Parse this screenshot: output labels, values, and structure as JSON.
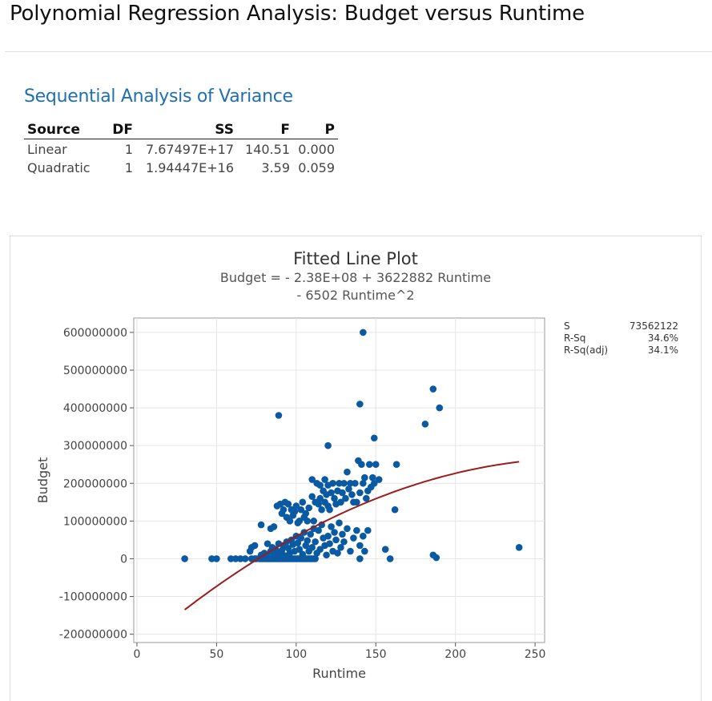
{
  "page": {
    "title": "Polynomial Regression Analysis: Budget versus Runtime"
  },
  "anova": {
    "title": "Sequential Analysis of Variance",
    "headers": [
      "Source",
      "DF",
      "SS",
      "F",
      "P"
    ],
    "rows": [
      [
        "Linear",
        "1",
        "7.67497E+17",
        "140.51",
        "0.000"
      ],
      [
        "Quadratic",
        "1",
        "1.94447E+16",
        "3.59",
        "0.059"
      ]
    ]
  },
  "plot": {
    "title": "Fitted Line Plot",
    "equation_line1": "Budget = - 2.38E+08 + 3622882 Runtime",
    "equation_line2": "- 6502 Runtime^2",
    "stats": [
      {
        "label": "S",
        "value": "73562122"
      },
      {
        "label": "R-Sq",
        "value": "34.6%"
      },
      {
        "label": "R-Sq(adj)",
        "value": "34.1%"
      }
    ]
  },
  "colors": {
    "accent": "#1f6fb2",
    "points": "#0a5aa3",
    "fit_line": "#9b1c1c"
  },
  "chart_data": {
    "type": "scatter",
    "title": "Fitted Line Plot",
    "xlabel": "Runtime",
    "ylabel": "Budget",
    "xlim": [
      -2,
      256
    ],
    "ylim": [
      -222000000,
      638000000
    ],
    "x_ticks": [
      0,
      50,
      100,
      150,
      200,
      250
    ],
    "x_tick_labels": [
      "0",
      "50",
      "100",
      "150",
      "200",
      "250"
    ],
    "y_ticks": [
      -200000000,
      -100000000,
      0,
      100000000,
      200000000,
      300000000,
      400000000,
      500000000,
      600000000
    ],
    "y_tick_labels": [
      "-200000000",
      "-100000000",
      "0",
      "100000000",
      "200000000",
      "300000000",
      "400000000",
      "500000000",
      "600000000"
    ],
    "grid": true,
    "fit": {
      "intercept": -238000000,
      "linear": 3622882,
      "quadratic": -6502,
      "x_range": [
        30,
        240
      ]
    },
    "points": [
      [
        30,
        0
      ],
      [
        47,
        0
      ],
      [
        50,
        0
      ],
      [
        59,
        0
      ],
      [
        62,
        0
      ],
      [
        65,
        0
      ],
      [
        68,
        0
      ],
      [
        72,
        0
      ],
      [
        74,
        0
      ],
      [
        71,
        20000000
      ],
      [
        72,
        30000000
      ],
      [
        74,
        35000000
      ],
      [
        75,
        0
      ],
      [
        77,
        0
      ],
      [
        78,
        0
      ],
      [
        79,
        0
      ],
      [
        80,
        0
      ],
      [
        81,
        0
      ],
      [
        82,
        0
      ],
      [
        83,
        0
      ],
      [
        84,
        0
      ],
      [
        85,
        0
      ],
      [
        86,
        0
      ],
      [
        87,
        0
      ],
      [
        88,
        0
      ],
      [
        89,
        0
      ],
      [
        90,
        0
      ],
      [
        91,
        0
      ],
      [
        92,
        0
      ],
      [
        93,
        0
      ],
      [
        94,
        0
      ],
      [
        95,
        0
      ],
      [
        96,
        0
      ],
      [
        97,
        0
      ],
      [
        98,
        0
      ],
      [
        99,
        0
      ],
      [
        100,
        0
      ],
      [
        101,
        0
      ],
      [
        102,
        0
      ],
      [
        103,
        0
      ],
      [
        104,
        0
      ],
      [
        105,
        0
      ],
      [
        106,
        0
      ],
      [
        107,
        0
      ],
      [
        108,
        0
      ],
      [
        109,
        0
      ],
      [
        110,
        0
      ],
      [
        111,
        0
      ],
      [
        112,
        0
      ],
      [
        78,
        10000000
      ],
      [
        80,
        15000000
      ],
      [
        82,
        5000000
      ],
      [
        84,
        20000000
      ],
      [
        85,
        30000000
      ],
      [
        86,
        10000000
      ],
      [
        87,
        25000000
      ],
      [
        88,
        18000000
      ],
      [
        89,
        40000000
      ],
      [
        90,
        12000000
      ],
      [
        91,
        22000000
      ],
      [
        92,
        35000000
      ],
      [
        93,
        8000000
      ],
      [
        94,
        45000000
      ],
      [
        95,
        28000000
      ],
      [
        96,
        15000000
      ],
      [
        97,
        50000000
      ],
      [
        98,
        38000000
      ],
      [
        99,
        20000000
      ],
      [
        100,
        60000000
      ],
      [
        101,
        42000000
      ],
      [
        102,
        25000000
      ],
      [
        103,
        55000000
      ],
      [
        104,
        12000000
      ],
      [
        105,
        70000000
      ],
      [
        106,
        35000000
      ],
      [
        107,
        48000000
      ],
      [
        108,
        20000000
      ],
      [
        109,
        65000000
      ],
      [
        110,
        30000000
      ],
      [
        111,
        80000000
      ],
      [
        112,
        45000000
      ],
      [
        113,
        15000000
      ],
      [
        114,
        75000000
      ],
      [
        115,
        25000000
      ],
      [
        116,
        90000000
      ],
      [
        117,
        55000000
      ],
      [
        118,
        35000000
      ],
      [
        119,
        10000000
      ],
      [
        120,
        60000000
      ],
      [
        121,
        40000000
      ],
      [
        122,
        85000000
      ],
      [
        123,
        20000000
      ],
      [
        124,
        70000000
      ],
      [
        125,
        50000000
      ],
      [
        126,
        15000000
      ],
      [
        127,
        95000000
      ],
      [
        128,
        30000000
      ],
      [
        129,
        65000000
      ],
      [
        130,
        45000000
      ],
      [
        132,
        80000000
      ],
      [
        134,
        20000000
      ],
      [
        136,
        55000000
      ],
      [
        138,
        75000000
      ],
      [
        140,
        35000000
      ],
      [
        142,
        60000000
      ],
      [
        145,
        75000000
      ],
      [
        78,
        90000000
      ],
      [
        82,
        40000000
      ],
      [
        84,
        80000000
      ],
      [
        86,
        85000000
      ],
      [
        88,
        140000000
      ],
      [
        90,
        145000000
      ],
      [
        91,
        120000000
      ],
      [
        92,
        130000000
      ],
      [
        93,
        150000000
      ],
      [
        94,
        110000000
      ],
      [
        95,
        145000000
      ],
      [
        96,
        100000000
      ],
      [
        97,
        130000000
      ],
      [
        98,
        115000000
      ],
      [
        99,
        125000000
      ],
      [
        100,
        140000000
      ],
      [
        101,
        95000000
      ],
      [
        102,
        100000000
      ],
      [
        103,
        130000000
      ],
      [
        104,
        150000000
      ],
      [
        105,
        110000000
      ],
      [
        106,
        120000000
      ],
      [
        107,
        100000000
      ],
      [
        108,
        135000000
      ],
      [
        110,
        165000000
      ],
      [
        111,
        100000000
      ],
      [
        112,
        150000000
      ],
      [
        113,
        200000000
      ],
      [
        114,
        145000000
      ],
      [
        115,
        160000000
      ],
      [
        116,
        130000000
      ],
      [
        117,
        180000000
      ],
      [
        118,
        150000000
      ],
      [
        119,
        170000000
      ],
      [
        120,
        140000000
      ],
      [
        121,
        130000000
      ],
      [
        122,
        175000000
      ],
      [
        123,
        200000000
      ],
      [
        124,
        160000000
      ],
      [
        125,
        145000000
      ],
      [
        126,
        180000000
      ],
      [
        127,
        200000000
      ],
      [
        128,
        150000000
      ],
      [
        129,
        175000000
      ],
      [
        130,
        200000000
      ],
      [
        131,
        160000000
      ],
      [
        132,
        230000000
      ],
      [
        133,
        185000000
      ],
      [
        134,
        200000000
      ],
      [
        135,
        170000000
      ],
      [
        136,
        150000000
      ],
      [
        137,
        200000000
      ],
      [
        138,
        150000000
      ],
      [
        139,
        260000000
      ],
      [
        140,
        175000000
      ],
      [
        141,
        250000000
      ],
      [
        142,
        200000000
      ],
      [
        143,
        215000000
      ],
      [
        144,
        160000000
      ],
      [
        145,
        180000000
      ],
      [
        146,
        250000000
      ],
      [
        147,
        190000000
      ],
      [
        148,
        215000000
      ],
      [
        149,
        200000000
      ],
      [
        150,
        250000000
      ],
      [
        152,
        210000000
      ],
      [
        163,
        250000000
      ],
      [
        162,
        130000000
      ],
      [
        110,
        210000000
      ],
      [
        115,
        195000000
      ],
      [
        118,
        210000000
      ],
      [
        120,
        195000000
      ],
      [
        140,
        0
      ],
      [
        143,
        20000000
      ],
      [
        156,
        25000000
      ],
      [
        159,
        0
      ],
      [
        120,
        300000000
      ],
      [
        149,
        320000000
      ],
      [
        140,
        410000000
      ],
      [
        89,
        380000000
      ],
      [
        142,
        600000000
      ],
      [
        181,
        357000000
      ],
      [
        186,
        450000000
      ],
      [
        190,
        400000000
      ],
      [
        186,
        10000000
      ],
      [
        188,
        3000000
      ],
      [
        240,
        30000000
      ]
    ]
  }
}
